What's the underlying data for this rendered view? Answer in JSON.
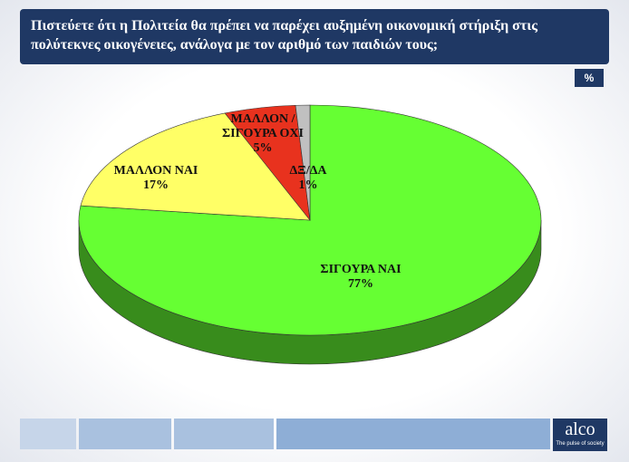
{
  "chart_data": {
    "type": "pie",
    "title": "Πιστεύετε ότι η Πολιτεία θα πρέπει να παρέχει αυξημένη οικονομική στήριξη στις πολύτεκνες οικογένειες, ανάλογα με τον αριθμό των παιδιών τους;",
    "unit_label": "%",
    "categories": [
      "ΣΙΓΟΥΡΑ ΝΑΙ",
      "ΜΑΛΛΟΝ ΝΑΙ",
      "ΜΑΛΛΟΝ / ΣΙΓΟΥΡΑ ΟΧΙ",
      "ΔΞ/ΔΑ"
    ],
    "values": [
      77,
      17,
      5,
      1
    ],
    "value_labels": [
      "77%",
      "17%",
      "5%",
      "1%"
    ],
    "colors": [
      "#66ff33",
      "#ffff66",
      "#e8321e",
      "#c0c0c0"
    ]
  },
  "branding": {
    "logo": "alco",
    "tagline": "The pulse of society"
  }
}
